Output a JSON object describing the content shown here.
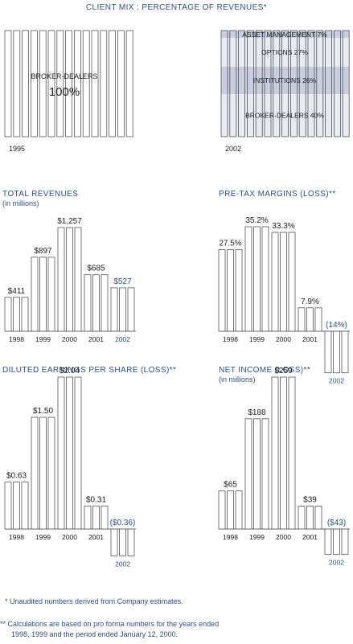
{
  "chart_data": [
    {
      "type": "table",
      "title": "CLIENT MIX : PERCENTAGE OF REVENUES*",
      "panels": [
        {
          "year": "1995",
          "segments": [
            {
              "label": "BROKER-DEALERS",
              "value": "100%"
            }
          ]
        },
        {
          "year": "2002",
          "segments": [
            {
              "label": "ASSET MANAGEMENT 7%",
              "value": 7
            },
            {
              "label": "OPTIONS 27%",
              "value": 27
            },
            {
              "label": "INSTITUTIONS 26%",
              "value": 26
            },
            {
              "label": "BROKER-DEALERS 40%",
              "value": 40
            }
          ]
        }
      ]
    },
    {
      "type": "bar",
      "title": "TOTAL REVENUES",
      "subtitle": "(in millions)",
      "categories": [
        "1998",
        "1999",
        "2000",
        "2001",
        "2002"
      ],
      "values": [
        411,
        897,
        1257,
        685,
        527
      ],
      "labels": [
        "$411",
        "$897",
        "$1,257",
        "$685",
        "$527"
      ],
      "highlight_last": true
    },
    {
      "type": "bar",
      "title": "PRE-TAX MARGINS (LOSS)**",
      "subtitle": "",
      "categories": [
        "1998",
        "1999",
        "2000",
        "2001",
        "2002"
      ],
      "values": [
        27.5,
        35.2,
        33.3,
        7.9,
        -14
      ],
      "labels": [
        "27.5%",
        "35.2%",
        "33.3%",
        "7.9%",
        "(14%)"
      ],
      "highlight_last": true
    },
    {
      "type": "bar",
      "title": "DILUTED EARNINGS PER SHARE (LOSS)**",
      "subtitle": "",
      "categories": [
        "1998",
        "1999",
        "2000",
        "2001",
        "2002"
      ],
      "values": [
        0.63,
        1.5,
        2.04,
        0.31,
        -0.36
      ],
      "labels": [
        "$0.63",
        "$1.50",
        "$2.04",
        "$0.31",
        "($0.36)"
      ],
      "highlight_last": true
    },
    {
      "type": "bar",
      "title": "NET INCOME (LOSS)**",
      "subtitle": "(in millions)",
      "categories": [
        "1998",
        "1999",
        "2000",
        "2001",
        "2002"
      ],
      "values": [
        65,
        188,
        259,
        39,
        -43
      ],
      "labels": [
        "$65",
        "$188",
        "$259",
        "$39",
        "($43)"
      ],
      "highlight_last": true
    }
  ],
  "footnotes": {
    "note1": "* Unaudited numbers derived from Company estimates.",
    "note2_line1": "** Calculations are based on pro forma numbers for the years ended",
    "note2_line2": "1998, 1999 and the period ended January 12, 2000."
  },
  "colors": {
    "title": "#2a4f86",
    "bar_stroke": "#555555",
    "highlight_text": "#2a4f86",
    "mix_band_light": "#e9ebf3",
    "mix_band_dark": "#c8cde0"
  }
}
